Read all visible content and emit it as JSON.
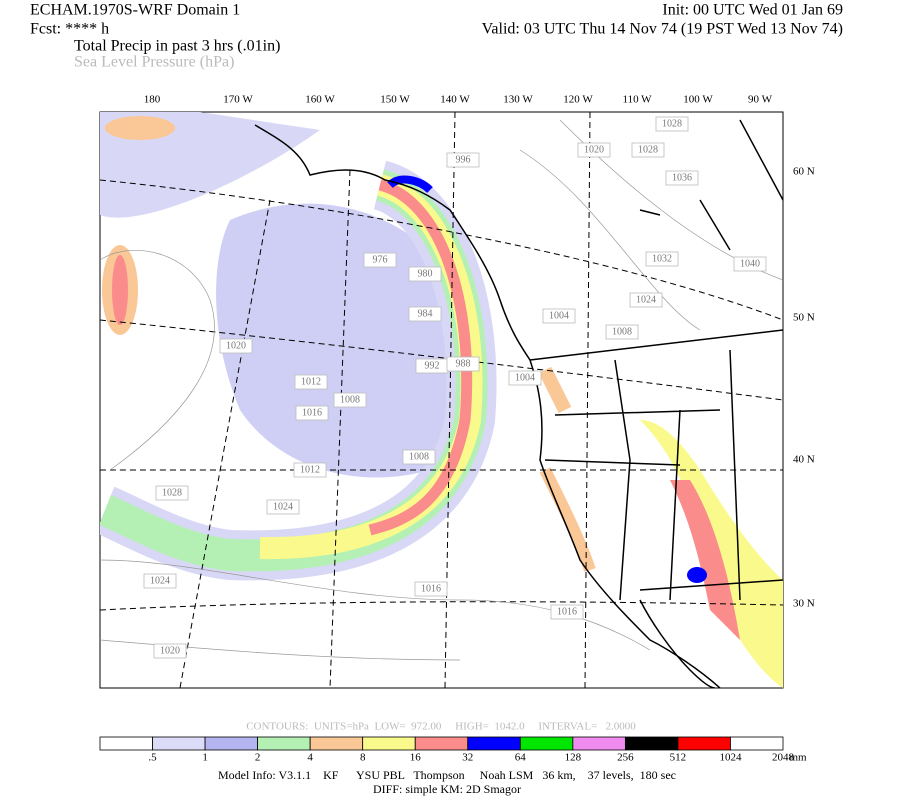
{
  "header": {
    "model": "ECHAM.1970S-WRF Domain 1",
    "init": "Init: 00 UTC Wed 01 Jan 69",
    "fcst": "Fcst: **** h",
    "valid": "Valid: 03 UTC Thu 14 Nov 74 (19 PST Wed 13 Nov 74)",
    "field1": "Total Precip in past 3 hrs (.01in)",
    "field2": "Sea Level Pressure (hPa)"
  },
  "map": {
    "longitudes": [
      "180",
      "170 W",
      "160 W",
      "150 W",
      "140 W",
      "130 W",
      "120 W",
      "110 W",
      "100 W",
      "90 W"
    ],
    "latitudes": [
      "60 N",
      "50 N",
      "40 N",
      "30 N"
    ],
    "pressure_labels": [
      "1028",
      "1020",
      "1028",
      "1036",
      "996",
      "1032",
      "1040",
      "1024",
      "1004",
      "1008",
      "976",
      "980",
      "984",
      "1020",
      "992",
      "988",
      "1012",
      "1008",
      "1016",
      "1004",
      "1008",
      "1012",
      "1028",
      "1024",
      "1024",
      "1020",
      "1016",
      "1016"
    ]
  },
  "contours": "CONTOURS:  UNITS=hPa  LOW=  972.00     HIGH=  1042.0     INTERVAL=   2.0000",
  "colorbar": {
    "colors": [
      "#ffffff",
      "#dcdcf8",
      "#b4b4f0",
      "#b4f0b4",
      "#fac896",
      "#fafa8c",
      "#fa8c8c",
      "#0000ff",
      "#00e600",
      "#f08cf0",
      "#000000",
      "#ff0000",
      "#ffffff"
    ],
    "labels": [
      ".5",
      "1",
      "2",
      "4",
      "8",
      "16",
      "32",
      "64",
      "128",
      "256",
      "512",
      "1024",
      "2048"
    ],
    "unit": "mm"
  },
  "footer": {
    "model_info": "Model Info: V3.1.1    KF      YSU PBL   Thompson     Noah LSM   36 km,    37 levels,  180 sec",
    "diff": "DIFF: simple KM: 2D Smagor"
  }
}
